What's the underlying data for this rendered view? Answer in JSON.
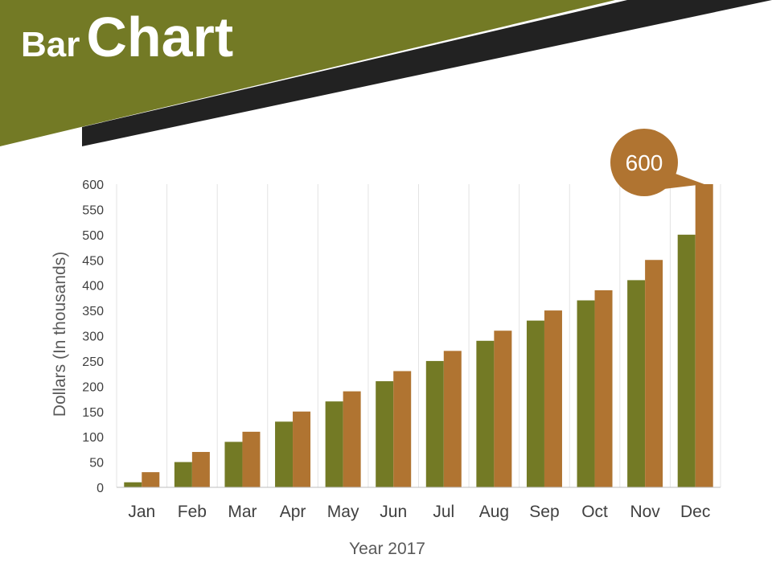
{
  "slide": {
    "title_word1": "Bar",
    "title_word2": "Chart",
    "colors": {
      "banner": "#737a25",
      "banner_shadow": "#222222",
      "series1": "#737a25",
      "series2": "#b07431",
      "callout": "#b07431",
      "grid": "#e3e3e3",
      "axis": "#bfbfbf"
    }
  },
  "chart_data": {
    "type": "bar",
    "categories": [
      "Jan",
      "Feb",
      "Mar",
      "Apr",
      "May",
      "Jun",
      "Jul",
      "Aug",
      "Sep",
      "Oct",
      "Nov",
      "Dec"
    ],
    "series": [
      {
        "values": [
          10,
          50,
          90,
          130,
          170,
          210,
          250,
          290,
          330,
          370,
          410,
          500
        ]
      },
      {
        "values": [
          30,
          70,
          110,
          150,
          190,
          230,
          270,
          310,
          350,
          390,
          450,
          600
        ]
      }
    ],
    "xlabel": "Year 2017",
    "ylabel": "Dollars (In thousands)",
    "ylim": [
      0,
      600
    ],
    "yticks": [
      0,
      50,
      100,
      150,
      200,
      250,
      300,
      350,
      400,
      450,
      500,
      550,
      600
    ],
    "grid": "vertical-category-separators",
    "callout": {
      "label": "600",
      "category": "Dec",
      "series_index": 1
    }
  }
}
